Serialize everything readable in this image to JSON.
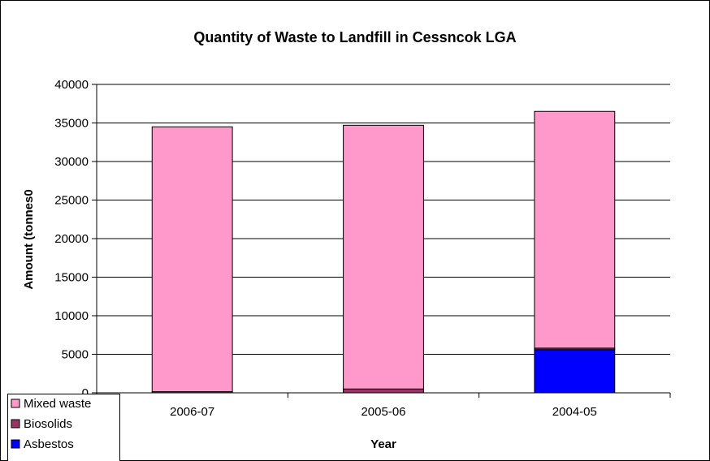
{
  "chart_data": {
    "type": "bar",
    "stacked": true,
    "title": "Quantity of Waste to Landfill in Cessncok LGA",
    "xlabel": "Year",
    "ylabel": "Amount (tonnes0",
    "categories": [
      "2006-07",
      "2005-06",
      "2004-05"
    ],
    "ylim": [
      0,
      40000
    ],
    "yticks": [
      0,
      5000,
      10000,
      15000,
      20000,
      25000,
      30000,
      35000,
      40000
    ],
    "grid": true,
    "legend_position": "bottom-left",
    "series": [
      {
        "name": "Asbestos",
        "color": "#0000ff",
        "values": [
          0,
          0,
          5600
        ]
      },
      {
        "name": "Biosolids",
        "color": "#993366",
        "values": [
          150,
          500,
          200
        ]
      },
      {
        "name": "Mixed waste",
        "color": "#ff99cc",
        "values": [
          34350,
          34200,
          30700
        ]
      }
    ],
    "legend_order": [
      "Mixed waste",
      "Biosolids",
      "Asbestos"
    ]
  }
}
